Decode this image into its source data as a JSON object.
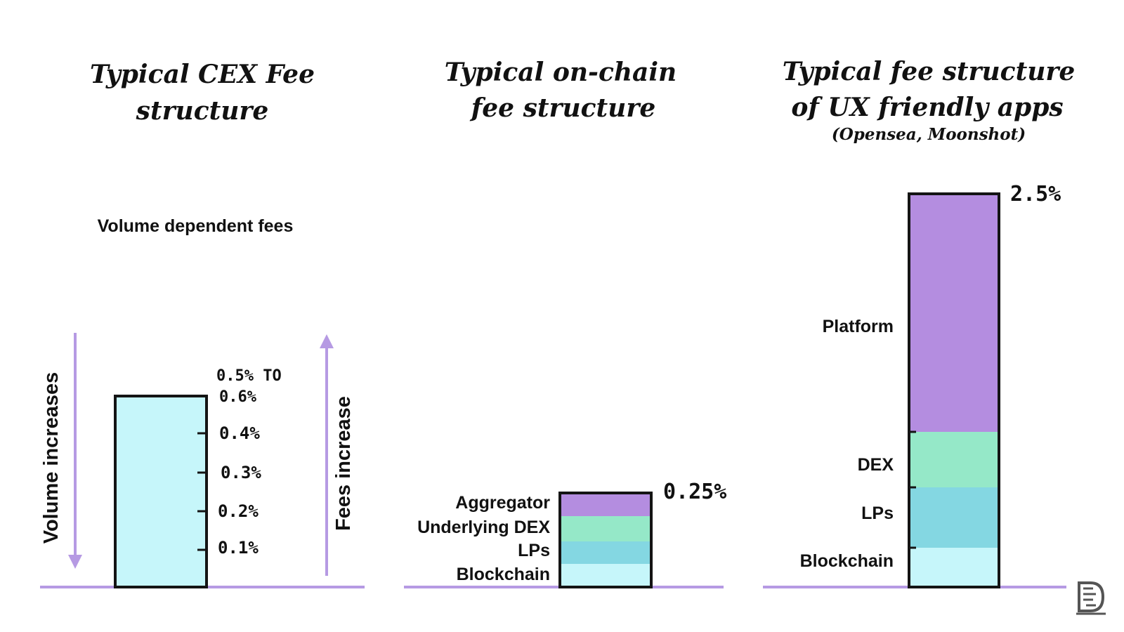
{
  "colors": {
    "axis": "#b69ae3",
    "outline": "#141414",
    "cex_bar": "#c6f6fa",
    "platform": "#b48de0",
    "aggregator": "#b48de0",
    "dex": "#95e8c8",
    "lps": "#84d7e2",
    "blockchain": "#c6f6fa"
  },
  "panels": {
    "cex": {
      "title_line1": "Typical CEX Fee",
      "title_line2": "structure",
      "caption": "Volume dependent fees",
      "left_arrow_label": "Volume increases",
      "right_arrow_label": "Fees increase",
      "top_label_line1": "0.5% TO",
      "top_label_line2": "0.6%",
      "ticks": [
        "0.4%",
        "0.3%",
        "0.2%",
        "0.1%"
      ]
    },
    "onchain": {
      "title_line1": "Typical on-chain",
      "title_line2": "fee structure",
      "total_label": "0.25%",
      "layers": [
        {
          "label": "Blockchain",
          "color_key": "blockchain"
        },
        {
          "label": "LPs",
          "color_key": "lps"
        },
        {
          "label": "Underlying DEX",
          "color_key": "dex"
        },
        {
          "label": "Aggregator",
          "color_key": "aggregator"
        }
      ]
    },
    "ux": {
      "title_line1": "Typical fee structure",
      "title_line2": "of UX friendly apps",
      "subtitle": "(Opensea, Moonshot)",
      "total_label": "2.5%",
      "layers": [
        {
          "label": "Blockchain",
          "color_key": "blockchain"
        },
        {
          "label": "LPs",
          "color_key": "lps"
        },
        {
          "label": "DEX",
          "color_key": "dex"
        },
        {
          "label": "Platform",
          "color_key": "platform"
        }
      ]
    }
  }
}
